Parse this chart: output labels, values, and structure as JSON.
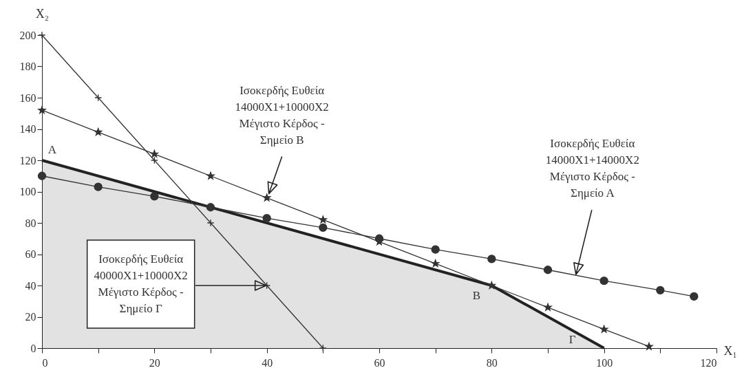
{
  "chart_data": {
    "type": "line",
    "xlabel": "X₁",
    "ylabel": "X₂",
    "xlim": [
      0,
      120
    ],
    "ylim": [
      0,
      200
    ],
    "xticks": [
      0,
      {
        "value": 10,
        "label": null
      },
      20,
      {
        "value": 30,
        "label": null
      },
      40,
      {
        "value": 50,
        "label": null
      },
      60,
      {
        "value": 70,
        "label": null
      },
      80,
      {
        "value": 90,
        "label": null
      },
      100,
      {
        "value": 110,
        "label": null
      },
      120
    ],
    "yticks": [
      0,
      20,
      40,
      60,
      80,
      100,
      120,
      140,
      160,
      180,
      200
    ],
    "series": [
      {
        "type": "area",
        "color": "#222222",
        "x": [
          0,
          80,
          100
        ],
        "values": [
          120,
          40,
          0
        ]
      },
      {
        "color": "#333333",
        "marker": "cross",
        "x": [
          0,
          10,
          20,
          30,
          40,
          50
        ],
        "values": [
          200,
          160,
          120,
          80,
          40,
          0
        ]
      },
      {
        "color": "#333333",
        "marker": "star",
        "x": [
          0,
          10,
          20,
          30,
          40,
          50,
          60,
          70,
          80,
          90,
          100,
          108
        ],
        "values": [
          152,
          138,
          124,
          110,
          96,
          82,
          68,
          54,
          40,
          26,
          12,
          1
        ]
      },
      {
        "color": "#333333",
        "marker": "circle",
        "x": [
          0,
          10,
          20,
          30,
          40,
          50,
          60,
          70,
          80,
          90,
          100,
          110,
          116
        ],
        "values": [
          110,
          103,
          97,
          90,
          83,
          77,
          70,
          63,
          57,
          50,
          43,
          37,
          33
        ]
      }
    ],
    "annotations": [
      {
        "text": "Ισοκερδής Ευθεία\n14000X1+10000X2\nΜέγιστο Κέρδος -\nΣημείο Β",
        "x": 40,
        "y": 96
      },
      {
        "text": "Ισοκερδής Ευθεία\n14000X1+14000X2\nΜέγιστο Κέρδος -\nΣημείο Α",
        "x": 95,
        "y": 47
      },
      {
        "text": "Ισοκερδής Ευθεία\n40000X1+10000X2\nΜέγιστο Κέρδος -\nΣημείο Γ",
        "x": 40,
        "y": 40
      },
      {
        "text": "Α",
        "x": 0,
        "y": 120
      },
      {
        "text": "Β",
        "x": 80,
        "y": 40
      },
      {
        "text": "Γ",
        "x": 100,
        "y": 0
      }
    ]
  }
}
